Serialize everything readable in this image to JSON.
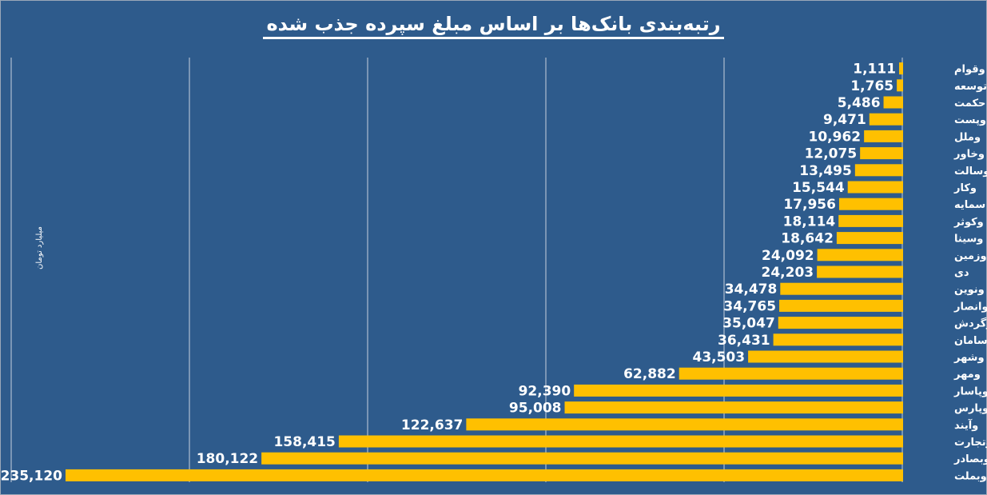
{
  "chart_data": {
    "type": "bar",
    "orientation": "horizontal",
    "title": "رتبه‌بندی بانک‌ها بر اساس مبلغ سپرده جذب شده",
    "ylabel": "میلیارد تومان",
    "xlim": [
      0,
      235120
    ],
    "grid": true,
    "bar_color": "#ffc000",
    "background_color": "#2e5b8c",
    "categories": [
      "وقوام",
      "توسعه",
      "حکمت",
      "وپست",
      "وملل",
      "وخاور",
      "وسالت",
      "وکار",
      "سمایه",
      "وکوثر",
      "وسینا",
      "وزمین",
      "دی",
      "ونوین",
      "وانصار",
      "وگردش",
      "سامان",
      "وشهر",
      "ومهر",
      "وپاسار",
      "وپارس",
      "وآیند",
      "وتجارت",
      "وبصادر",
      "وبملت"
    ],
    "values": [
      1111,
      1765,
      5486,
      9471,
      10962,
      12075,
      13495,
      15544,
      17956,
      18114,
      18642,
      24092,
      24203,
      34478,
      34765,
      35047,
      36431,
      43503,
      62882,
      92390,
      95008,
      122637,
      158415,
      180122,
      235120
    ],
    "value_labels": [
      "1,111",
      "1,765",
      "5,486",
      "9,471",
      "10,962",
      "12,075",
      "13,495",
      "15,544",
      "17,956",
      "18,114",
      "18,642",
      "24,092",
      "24,203",
      "34,478",
      "34,765",
      "35,047",
      "36,431",
      "43,503",
      "62,882",
      "92,390",
      "95,008",
      "122,637",
      "158,415",
      "180,122",
      "235,120"
    ]
  }
}
